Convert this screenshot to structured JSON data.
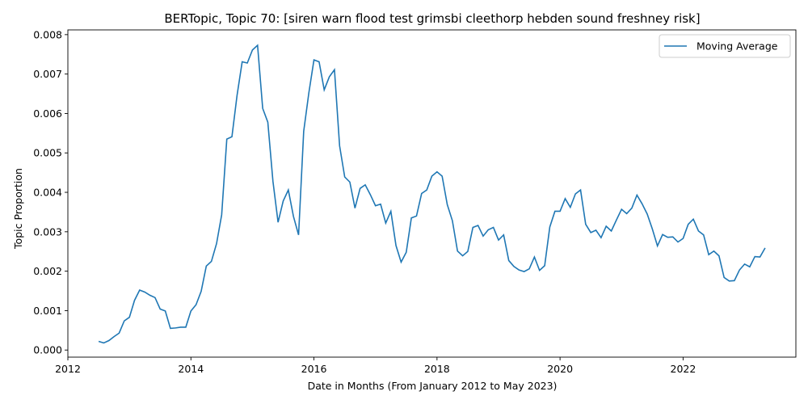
{
  "chart_data": {
    "type": "line",
    "title": "BERTopic, Topic 70: [siren warn flood test grimsbi cleethorp hebden sound freshney risk]",
    "xlabel": "Date in Months (From January 2012 to May 2023)",
    "ylabel": "Topic Proportion",
    "xlim": [
      "2012-01",
      "2023-11"
    ],
    "ylim": [
      -0.00018,
      0.00812
    ],
    "x_ticks": [
      "2012",
      "2014",
      "2016",
      "2018",
      "2020",
      "2022"
    ],
    "y_ticks": [
      "0.000",
      "0.001",
      "0.002",
      "0.003",
      "0.004",
      "0.005",
      "0.006",
      "0.007",
      "0.008"
    ],
    "legend": "top-right",
    "grid": false,
    "line_color": "#1f77b4",
    "series": [
      {
        "name": "Moving Average",
        "x": [
          "2012-07",
          "2012-08",
          "2012-09",
          "2012-10",
          "2012-11",
          "2012-12",
          "2013-01",
          "2013-02",
          "2013-03",
          "2013-04",
          "2013-05",
          "2013-06",
          "2013-07",
          "2013-08",
          "2013-09",
          "2013-10",
          "2013-11",
          "2013-12",
          "2014-01",
          "2014-02",
          "2014-03",
          "2014-04",
          "2014-05",
          "2014-06",
          "2014-07",
          "2014-08",
          "2014-09",
          "2014-10",
          "2014-11",
          "2014-12",
          "2015-01",
          "2015-02",
          "2015-03",
          "2015-04",
          "2015-05",
          "2015-06",
          "2015-07",
          "2015-08",
          "2015-09",
          "2015-10",
          "2015-11",
          "2015-12",
          "2016-01",
          "2016-02",
          "2016-03",
          "2016-04",
          "2016-05",
          "2016-06",
          "2016-07",
          "2016-08",
          "2016-09",
          "2016-10",
          "2016-11",
          "2016-12",
          "2017-01",
          "2017-02",
          "2017-03",
          "2017-04",
          "2017-05",
          "2017-06",
          "2017-07",
          "2017-08",
          "2017-09",
          "2017-10",
          "2017-11",
          "2017-12",
          "2018-01",
          "2018-02",
          "2018-03",
          "2018-04",
          "2018-05",
          "2018-06",
          "2018-07",
          "2018-08",
          "2018-09",
          "2018-10",
          "2018-11",
          "2018-12",
          "2019-01",
          "2019-02",
          "2019-03",
          "2019-04",
          "2019-05",
          "2019-06",
          "2019-07",
          "2019-08",
          "2019-09",
          "2019-10",
          "2019-11",
          "2019-12",
          "2020-01",
          "2020-02",
          "2020-03",
          "2020-04",
          "2020-05",
          "2020-06",
          "2020-07",
          "2020-08",
          "2020-09",
          "2020-10",
          "2020-11",
          "2020-12",
          "2021-01",
          "2021-02",
          "2021-03",
          "2021-04",
          "2021-05",
          "2021-06",
          "2021-07",
          "2021-08",
          "2021-09",
          "2021-10",
          "2021-11",
          "2021-12",
          "2022-01",
          "2022-02",
          "2022-03",
          "2022-04",
          "2022-05",
          "2022-06",
          "2022-07",
          "2022-08",
          "2022-09",
          "2022-10",
          "2022-11",
          "2022-12",
          "2023-01",
          "2023-02",
          "2023-03",
          "2023-04",
          "2023-05"
        ],
        "y": [
          0.00022,
          0.00018,
          0.00024,
          0.00034,
          0.00043,
          0.00074,
          0.00083,
          0.00126,
          0.00152,
          0.00147,
          0.00139,
          0.00133,
          0.00104,
          0.00099,
          0.00055,
          0.00056,
          0.00058,
          0.00058,
          0.00099,
          0.00115,
          0.00149,
          0.00213,
          0.00225,
          0.0027,
          0.00343,
          0.00535,
          0.00541,
          0.00646,
          0.00731,
          0.00728,
          0.00761,
          0.00773,
          0.00613,
          0.00578,
          0.00428,
          0.00324,
          0.00378,
          0.00406,
          0.00339,
          0.00292,
          0.00555,
          0.00652,
          0.00736,
          0.00731,
          0.0066,
          0.00693,
          0.00711,
          0.00518,
          0.00439,
          0.00426,
          0.0036,
          0.0041,
          0.00419,
          0.00394,
          0.00366,
          0.0037,
          0.00322,
          0.00352,
          0.00265,
          0.00223,
          0.00248,
          0.00335,
          0.0034,
          0.00397,
          0.00406,
          0.00441,
          0.00452,
          0.00441,
          0.00369,
          0.00328,
          0.00251,
          0.00239,
          0.0025,
          0.00311,
          0.00316,
          0.00289,
          0.00305,
          0.00311,
          0.00279,
          0.00292,
          0.00227,
          0.00212,
          0.00203,
          0.00199,
          0.00206,
          0.00236,
          0.00202,
          0.00214,
          0.00312,
          0.00352,
          0.00352,
          0.00384,
          0.00362,
          0.00396,
          0.00406,
          0.00319,
          0.00298,
          0.00304,
          0.00285,
          0.00314,
          0.00302,
          0.0033,
          0.00357,
          0.00346,
          0.0036,
          0.00393,
          0.00371,
          0.00345,
          0.00307,
          0.00264,
          0.00293,
          0.00286,
          0.00287,
          0.00274,
          0.00283,
          0.00319,
          0.00332,
          0.00302,
          0.00292,
          0.00242,
          0.00251,
          0.00239,
          0.00184,
          0.00175,
          0.00176,
          0.00203,
          0.00218,
          0.00211,
          0.00237,
          0.00236,
          0.00259
        ]
      }
    ]
  }
}
